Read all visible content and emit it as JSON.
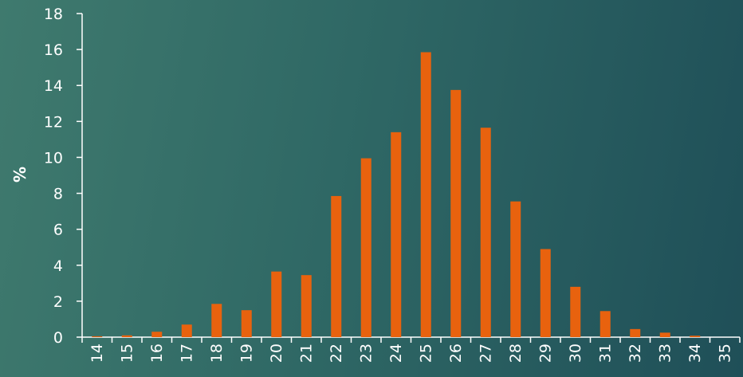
{
  "chart_data": {
    "type": "bar",
    "title": "",
    "xlabel": "",
    "ylabel": "%",
    "ylim": [
      0,
      18
    ],
    "yticks": [
      0,
      2,
      4,
      6,
      8,
      10,
      12,
      14,
      16,
      18
    ],
    "grid": false,
    "categories": [
      "14",
      "15",
      "16",
      "17",
      "18",
      "19",
      "20",
      "21",
      "22",
      "23",
      "24",
      "25",
      "26",
      "27",
      "28",
      "29",
      "30",
      "31",
      "32",
      "33",
      "34",
      "35"
    ],
    "values": [
      0.05,
      0.1,
      0.3,
      0.7,
      1.85,
      1.5,
      3.65,
      3.45,
      7.85,
      9.95,
      11.4,
      15.85,
      13.75,
      11.65,
      7.55,
      4.9,
      2.8,
      1.45,
      0.45,
      0.25,
      0.08,
      0
    ],
    "colors": {
      "bar": "#e8620e",
      "axis": "#ffffff"
    }
  }
}
